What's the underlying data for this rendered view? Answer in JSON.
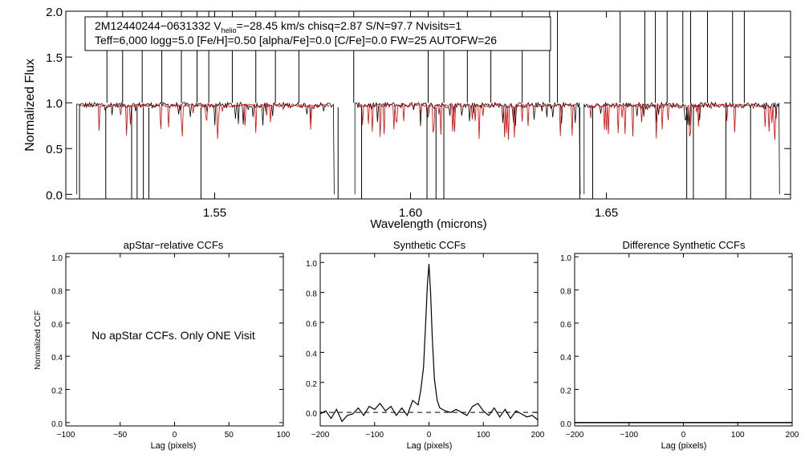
{
  "chart_data": [
    {
      "id": "spectrum",
      "type": "line",
      "ylabel": "Normalized Flux",
      "xlabel": "Wavelength (microns)",
      "xlim": [
        1.512,
        1.697
      ],
      "ylim": [
        -0.05,
        2.0
      ],
      "xticks": [
        1.55,
        1.6,
        1.65
      ],
      "xtick_labels": [
        "1.55",
        "1.60",
        "1.65"
      ],
      "yticks": [
        0.0,
        0.5,
        1.0,
        1.5,
        2.0
      ],
      "ytick_labels": [
        "0.0",
        "0.5",
        "1.0",
        "1.5",
        "2.0"
      ],
      "info_line1_parts": [
        "2M12440244−0631332  V",
        "helio",
        "=−28.45 km/s  chisq=2.87  S/N=97.7  Nvisits=1"
      ],
      "info_line2": "Teff=6,000 logg=5.0 [Fe/H]=0.50 [alpha/Fe]=0.0 [C/Fe]=0.0 FW=25 AUTOFW=26",
      "chips": [
        [
          1.5148,
          1.5805
        ],
        [
          1.5858,
          1.6433
        ],
        [
          1.6443,
          1.6942
        ]
      ],
      "model_ranges": [
        [
          1.5155,
          1.5795
        ],
        [
          1.5865,
          1.6425
        ],
        [
          1.6455,
          1.6935
        ]
      ],
      "spikes_up": [
        1.5225,
        1.5265,
        1.5315,
        1.5365,
        1.5415,
        1.5455,
        1.5485,
        1.5545,
        1.5605,
        1.5655,
        1.5715,
        1.5855,
        1.6045,
        1.6085,
        1.6145,
        1.6205,
        1.6285,
        1.6355,
        1.6375,
        1.6535,
        1.6598,
        1.6625,
        1.6655,
        1.6695,
        1.6715,
        1.6758,
        1.6822,
        1.6852
      ],
      "spikes_down": [
        1.5155,
        1.5222,
        1.5288,
        1.5302,
        1.5318,
        1.5332,
        1.5465,
        1.5815,
        1.5875,
        1.6042,
        1.6065,
        1.6085,
        1.6432,
        1.6465,
        1.6705,
        1.6722,
        1.6805,
        1.6868
      ]
    },
    {
      "id": "apstar",
      "type": "line",
      "title": "apStar−relative CCFs",
      "ylabel": "Normalized CCF",
      "xlabel": "Lag (pixels)",
      "xlim": [
        -100,
        100
      ],
      "ylim": [
        -0.02,
        1.02
      ],
      "xticks": [
        -100,
        -50,
        0,
        50,
        100
      ],
      "xtick_labels": [
        "−100",
        "−50",
        "0",
        "50",
        "100"
      ],
      "yticks": [
        0.0,
        0.2,
        0.4,
        0.6,
        0.8,
        1.0
      ],
      "ytick_labels": [
        "0.0",
        "0.2",
        "0.4",
        "0.6",
        "0.8",
        "1.0"
      ],
      "annotation": "No apStar CCFs.  Only ONE Visit"
    },
    {
      "id": "synthetic",
      "type": "line",
      "title": "Synthetic CCFs",
      "xlabel": "Lag (pixels)",
      "xlim": [
        -200,
        200
      ],
      "ylim": [
        -0.09,
        1.06
      ],
      "xticks": [
        -200,
        -100,
        0,
        100,
        200
      ],
      "xtick_labels": [
        "−200",
        "−100",
        "0",
        "100",
        "200"
      ],
      "yticks": [
        0.0,
        0.2,
        0.4,
        0.6,
        0.8,
        1.0
      ],
      "ytick_labels": [
        "0.0",
        "0.2",
        "0.4",
        "0.6",
        "0.8",
        "1.0"
      ],
      "series": [
        {
          "name": "ccf",
          "x": [
            -200,
            -190,
            -180,
            -170,
            -160,
            -150,
            -140,
            -130,
            -120,
            -110,
            -100,
            -90,
            -80,
            -70,
            -60,
            -50,
            -40,
            -30,
            -20,
            -15,
            -10,
            -6,
            -3,
            0,
            3,
            6,
            10,
            15,
            20,
            30,
            40,
            50,
            60,
            70,
            80,
            90,
            100,
            110,
            120,
            130,
            140,
            150,
            160,
            170,
            180,
            190,
            200
          ],
          "y": [
            -0.01,
            0.01,
            -0.04,
            0.02,
            -0.06,
            -0.02,
            -0.01,
            0.03,
            -0.02,
            0.04,
            0.02,
            0.06,
            0.01,
            0.04,
            -0.02,
            0.03,
            -0.02,
            0.08,
            0.05,
            0.15,
            0.3,
            0.6,
            0.85,
            0.99,
            0.8,
            0.5,
            0.22,
            0.08,
            0.03,
            0.01,
            0.0,
            0.02,
            0.0,
            -0.02,
            0.04,
            0.06,
            0.01,
            -0.02,
            0.03,
            -0.03,
            0.02,
            -0.04,
            0.01,
            -0.01,
            -0.03,
            -0.02,
            -0.05
          ]
        },
        {
          "name": "zero-level",
          "x": [
            -200,
            200
          ],
          "y": [
            0.0,
            0.0
          ]
        }
      ]
    },
    {
      "id": "difference",
      "type": "line",
      "title": "Difference Synthetic CCFs",
      "xlabel": "Lag (pixels)",
      "xlim": [
        -200,
        200
      ],
      "ylim": [
        -0.02,
        1.02
      ],
      "xticks": [
        -200,
        -100,
        0,
        100,
        200
      ],
      "xtick_labels": [
        "−200",
        "−100",
        "0",
        "100",
        "200"
      ],
      "yticks": [
        0.0,
        0.2,
        0.4,
        0.6,
        0.8,
        1.0
      ],
      "ytick_labels": [
        "0.0",
        "0.2",
        "0.4",
        "0.6",
        "0.8",
        "1.0"
      ],
      "series": [
        {
          "name": "difference-ccf",
          "x": [
            -200,
            200
          ],
          "y": [
            0.0,
            0.0
          ]
        }
      ]
    }
  ]
}
